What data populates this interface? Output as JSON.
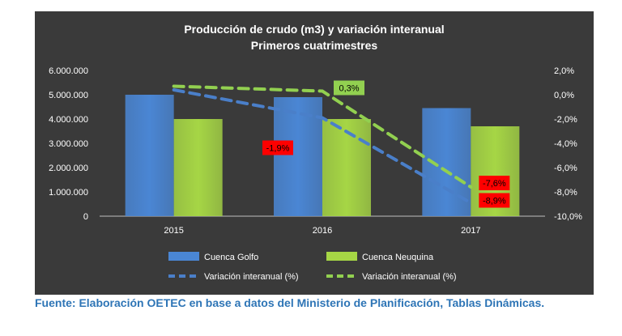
{
  "chart_data": {
    "type": "bar",
    "title": "Producción de crudo (m3) y variación interanual",
    "subtitle": "Primeros cuatrimestres",
    "categories": [
      "2015",
      "2016",
      "2017"
    ],
    "ylim": [
      0,
      6000000
    ],
    "y2lim": [
      -10,
      2
    ],
    "yticks": [
      "6.000.000",
      "5.000.000",
      "4.000.000",
      "3.000.000",
      "2.000.000",
      "1.000.000",
      "0"
    ],
    "y2ticks": [
      "2,0%",
      "0,0%",
      "-2,0%",
      "-4,0%",
      "-6,0%",
      "-8,0%",
      "-10,0%"
    ],
    "series": [
      {
        "name": "Cuenca Golfo",
        "kind": "bar",
        "color": "#4a86d4",
        "values": [
          5000000,
          4900000,
          4450000
        ]
      },
      {
        "name": "Cuenca Neuquina",
        "kind": "bar",
        "color": "#a6d645",
        "values": [
          4000000,
          4000000,
          3700000
        ]
      }
    ],
    "lines": [
      {
        "name": "Variación interanual (%)",
        "color": "#4a7fc9",
        "values": [
          0.4,
          -1.9,
          -8.9
        ],
        "labels": [
          "",
          "-1,9%",
          "-8,9%"
        ]
      },
      {
        "name": "Variación interanual (%)",
        "color": "#92d050",
        "values": [
          0.7,
          0.3,
          -7.6
        ],
        "labels": [
          "",
          "0,3%",
          "-7,6%"
        ]
      }
    ],
    "legend": "bottom",
    "grid": false,
    "colors": {
      "background": "#3a3a3a",
      "text": "#ffffff",
      "label_red": "#ff0000",
      "label_green": "#92d050"
    }
  },
  "source_note": "Fuente: Elaboración OETEC en base a datos del Ministerio de Planificación, Tablas Dinámicas."
}
